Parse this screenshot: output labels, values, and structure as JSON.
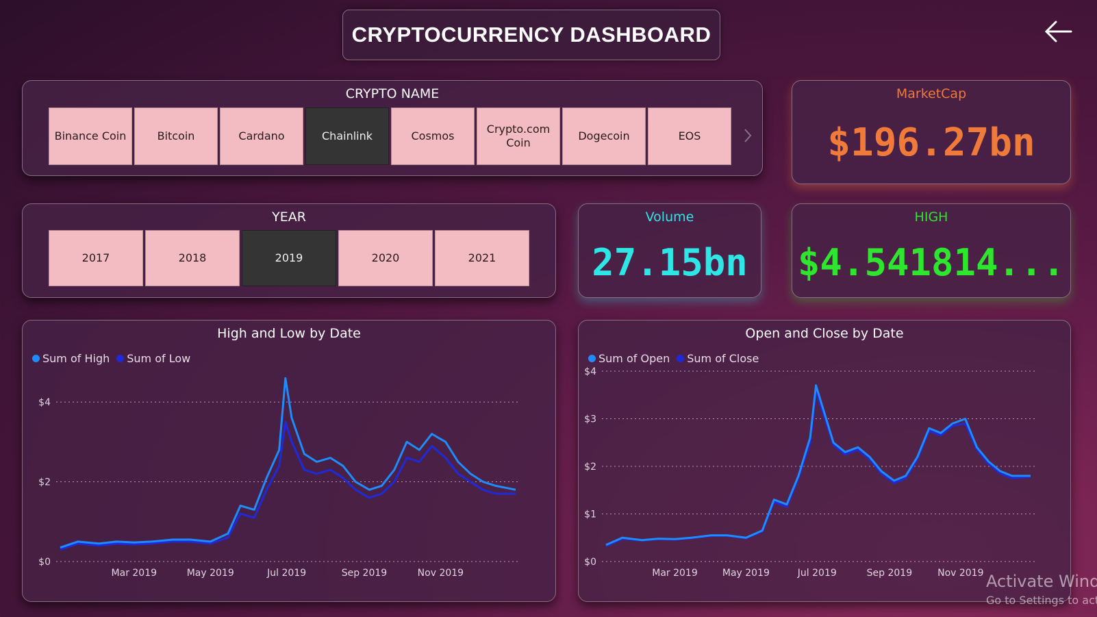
{
  "header": {
    "title": "CRYPTOCURRENCY DASHBOARD"
  },
  "crypto_slicer": {
    "title": "CRYPTO NAME",
    "items": [
      "Binance Coin",
      "Bitcoin",
      "Cardano",
      "Chainlink",
      "Cosmos",
      "Crypto.com Coin",
      "Dogecoin",
      "EOS"
    ],
    "selected": "Chainlink"
  },
  "year_slicer": {
    "title": "YEAR",
    "items": [
      "2017",
      "2018",
      "2019",
      "2020",
      "2021"
    ],
    "selected": "2019"
  },
  "kpis": {
    "marketcap": {
      "label": "MarketCap",
      "value": "$196.27bn",
      "color": "#f07a3a"
    },
    "volume": {
      "label": "Volume",
      "value": "27.15bn",
      "color": "#2ee6e6"
    },
    "high": {
      "label": "HIGH",
      "value": "$4.541814...",
      "color": "#2ee62e"
    }
  },
  "chart_data": [
    {
      "type": "line",
      "title": "High and Low by Date",
      "x_ticks": [
        "Mar 2019",
        "May 2019",
        "Jul 2019",
        "Sep 2019",
        "Nov 2019"
      ],
      "y_ticks": [
        "$0",
        "$2",
        "$4"
      ],
      "ylim": [
        0,
        4.5
      ],
      "series": [
        {
          "name": "Sum of High",
          "color": "#1e8cff",
          "x": [
            "2019-01-01",
            "2019-01-15",
            "2019-02-01",
            "2019-02-15",
            "2019-03-01",
            "2019-03-15",
            "2019-04-01",
            "2019-04-15",
            "2019-05-01",
            "2019-05-15",
            "2019-05-25",
            "2019-06-05",
            "2019-06-15",
            "2019-06-25",
            "2019-06-30",
            "2019-07-05",
            "2019-07-15",
            "2019-07-25",
            "2019-08-05",
            "2019-08-15",
            "2019-08-25",
            "2019-09-05",
            "2019-09-15",
            "2019-09-25",
            "2019-10-05",
            "2019-10-15",
            "2019-10-25",
            "2019-11-05",
            "2019-11-15",
            "2019-11-25",
            "2019-12-05",
            "2019-12-15",
            "2019-12-31"
          ],
          "values": [
            0.35,
            0.5,
            0.45,
            0.5,
            0.48,
            0.5,
            0.55,
            0.55,
            0.5,
            0.7,
            1.4,
            1.3,
            2.1,
            2.8,
            4.6,
            3.6,
            2.7,
            2.5,
            2.6,
            2.4,
            2.0,
            1.8,
            1.9,
            2.3,
            3.0,
            2.8,
            3.2,
            3.0,
            2.5,
            2.2,
            2.0,
            1.9,
            1.8
          ]
        },
        {
          "name": "Sum of Low",
          "color": "#1e2ad8",
          "x": [
            "2019-01-01",
            "2019-01-15",
            "2019-02-01",
            "2019-02-15",
            "2019-03-01",
            "2019-03-15",
            "2019-04-01",
            "2019-04-15",
            "2019-05-01",
            "2019-05-15",
            "2019-05-25",
            "2019-06-05",
            "2019-06-15",
            "2019-06-25",
            "2019-06-30",
            "2019-07-05",
            "2019-07-15",
            "2019-07-25",
            "2019-08-05",
            "2019-08-15",
            "2019-08-25",
            "2019-09-05",
            "2019-09-15",
            "2019-09-25",
            "2019-10-05",
            "2019-10-15",
            "2019-10-25",
            "2019-11-05",
            "2019-11-15",
            "2019-11-25",
            "2019-12-05",
            "2019-12-15",
            "2019-12-31"
          ],
          "values": [
            0.3,
            0.45,
            0.4,
            0.45,
            0.43,
            0.45,
            0.5,
            0.5,
            0.45,
            0.6,
            1.2,
            1.1,
            1.8,
            2.4,
            3.5,
            3.0,
            2.3,
            2.2,
            2.3,
            2.1,
            1.8,
            1.6,
            1.7,
            2.0,
            2.6,
            2.5,
            2.9,
            2.6,
            2.2,
            2.0,
            1.8,
            1.7,
            1.7
          ]
        }
      ]
    },
    {
      "type": "line",
      "title": "Open and Close by Date",
      "x_ticks": [
        "Mar 2019",
        "May 2019",
        "Jul 2019",
        "Sep 2019",
        "Nov 2019"
      ],
      "y_ticks": [
        "$0",
        "$1",
        "$2",
        "$3",
        "$4"
      ],
      "ylim": [
        0,
        4
      ],
      "series": [
        {
          "name": "Sum of Open",
          "color": "#1e8cff",
          "x": [
            "2019-01-01",
            "2019-01-15",
            "2019-02-01",
            "2019-02-15",
            "2019-03-01",
            "2019-03-15",
            "2019-04-01",
            "2019-04-15",
            "2019-05-01",
            "2019-05-15",
            "2019-05-25",
            "2019-06-05",
            "2019-06-15",
            "2019-06-25",
            "2019-06-30",
            "2019-07-05",
            "2019-07-15",
            "2019-07-25",
            "2019-08-05",
            "2019-08-15",
            "2019-08-25",
            "2019-09-05",
            "2019-09-15",
            "2019-09-25",
            "2019-10-05",
            "2019-10-15",
            "2019-10-25",
            "2019-11-05",
            "2019-11-15",
            "2019-11-25",
            "2019-12-05",
            "2019-12-15",
            "2019-12-31"
          ],
          "values": [
            0.35,
            0.5,
            0.45,
            0.48,
            0.47,
            0.5,
            0.55,
            0.55,
            0.5,
            0.65,
            1.3,
            1.2,
            1.8,
            2.6,
            3.7,
            3.3,
            2.5,
            2.3,
            2.4,
            2.2,
            1.9,
            1.7,
            1.8,
            2.2,
            2.8,
            2.7,
            2.9,
            3.0,
            2.4,
            2.1,
            1.9,
            1.8,
            1.8
          ]
        },
        {
          "name": "Sum of Close",
          "color": "#1e2ad8",
          "x": [
            "2019-01-01",
            "2019-01-15",
            "2019-02-01",
            "2019-02-15",
            "2019-03-01",
            "2019-03-15",
            "2019-04-01",
            "2019-04-15",
            "2019-05-01",
            "2019-05-15",
            "2019-05-25",
            "2019-06-05",
            "2019-06-15",
            "2019-06-25",
            "2019-06-30",
            "2019-07-05",
            "2019-07-15",
            "2019-07-25",
            "2019-08-05",
            "2019-08-15",
            "2019-08-25",
            "2019-09-05",
            "2019-09-15",
            "2019-09-25",
            "2019-10-05",
            "2019-10-15",
            "2019-10-25",
            "2019-11-05",
            "2019-11-15",
            "2019-11-25",
            "2019-12-05",
            "2019-12-15",
            "2019-12-31"
          ],
          "values": [
            0.32,
            0.48,
            0.44,
            0.47,
            0.46,
            0.49,
            0.54,
            0.54,
            0.49,
            0.63,
            1.25,
            1.15,
            1.75,
            2.5,
            3.6,
            3.2,
            2.45,
            2.25,
            2.35,
            2.15,
            1.85,
            1.65,
            1.75,
            2.15,
            2.75,
            2.65,
            2.85,
            2.9,
            2.35,
            2.05,
            1.85,
            1.75,
            1.78
          ]
        }
      ]
    }
  ],
  "watermark": {
    "line1": "Activate Windo",
    "line2": "Go to Settings to act"
  }
}
